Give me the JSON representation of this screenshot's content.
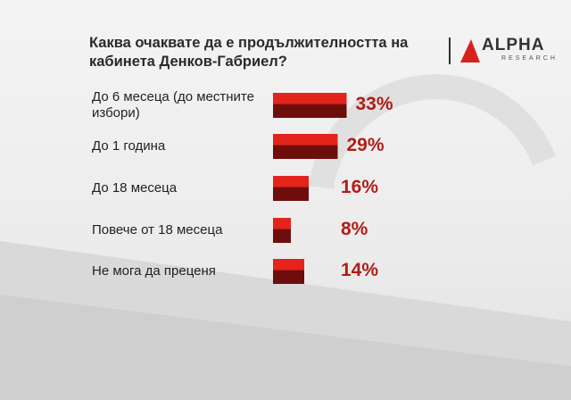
{
  "chart_data": {
    "type": "bar",
    "orientation": "horizontal",
    "title": "Каква очаквате да е продължителността на кабинета Денков-Габриел?",
    "categories": [
      "До 6 месеца (до местните избори)",
      "До 1 година",
      "До 18 месеца",
      "Повече от 18 месеца",
      "Не мога да преценя"
    ],
    "values": [
      33,
      29,
      16,
      8,
      14
    ],
    "value_labels": [
      "33%",
      "29%",
      "16%",
      "8%",
      "14%"
    ],
    "color": "#e3231c"
  },
  "logo": {
    "name": "ALPHA",
    "subtitle": "RESEARCH"
  }
}
